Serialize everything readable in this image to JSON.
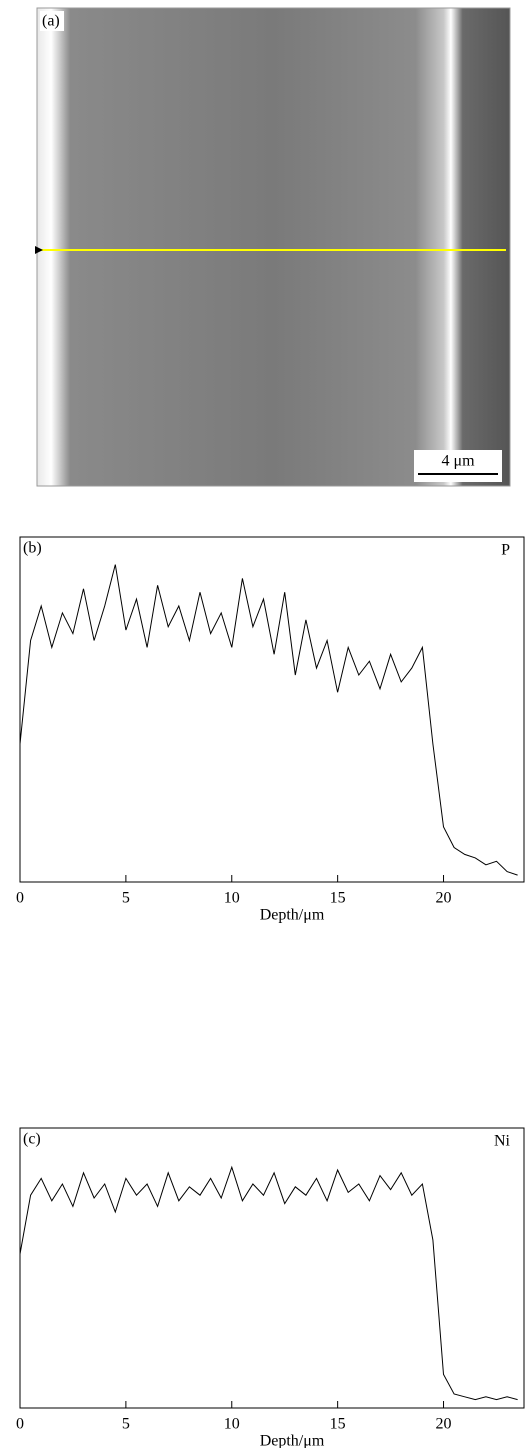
{
  "micrograph": {
    "label": "(a)",
    "scale_bar": "4 μm"
  },
  "chart_data": [
    {
      "type": "line",
      "panel": "(b)",
      "xlabel": "Depth/μm",
      "x": [
        0,
        0.5,
        1,
        1.5,
        2,
        2.5,
        3,
        3.5,
        4,
        4.5,
        5,
        5.5,
        6,
        6.5,
        7,
        7.5,
        8,
        8.5,
        9,
        9.5,
        10,
        10.5,
        11,
        11.5,
        12,
        12.5,
        13,
        13.5,
        14,
        14.5,
        15,
        15.5,
        16,
        16.5,
        17,
        17.5,
        18,
        18.5,
        19,
        19.5,
        20,
        20.5,
        21,
        21.5,
        22,
        22.5,
        23,
        23.5
      ],
      "series": [
        {
          "name": "P",
          "color": "#000000",
          "values": [
            40,
            70,
            80,
            68,
            78,
            72,
            85,
            70,
            80,
            92,
            73,
            82,
            68,
            86,
            74,
            80,
            70,
            84,
            72,
            78,
            68,
            88,
            74,
            82,
            66,
            84,
            60,
            76,
            62,
            70,
            55,
            68,
            60,
            64,
            56,
            66,
            58,
            62,
            68,
            40,
            16,
            10,
            8,
            7,
            5,
            6,
            3,
            2
          ]
        }
      ],
      "xlim": [
        0,
        23.8
      ],
      "ylim": [
        0,
        100
      ],
      "xticks": [
        0,
        5,
        10,
        15,
        20
      ]
    },
    {
      "type": "line",
      "panel": "(c)",
      "xlabel": "Depth/μm",
      "x": [
        0,
        0.5,
        1,
        1.5,
        2,
        2.5,
        3,
        3.5,
        4,
        4.5,
        5,
        5.5,
        6,
        6.5,
        7,
        7.5,
        8,
        8.5,
        9,
        9.5,
        10,
        10.5,
        11,
        11.5,
        12,
        12.5,
        13,
        13.5,
        14,
        14.5,
        15,
        15.5,
        16,
        16.5,
        17,
        17.5,
        18,
        18.5,
        19,
        19.5,
        20,
        20.5,
        21,
        21.5,
        22,
        22.5,
        23,
        23.5
      ],
      "series": [
        {
          "name": "Ni",
          "color": "#000000",
          "values": [
            55,
            76,
            82,
            74,
            80,
            72,
            84,
            75,
            80,
            70,
            82,
            76,
            80,
            72,
            84,
            74,
            79,
            76,
            82,
            75,
            86,
            74,
            80,
            76,
            84,
            73,
            79,
            76,
            82,
            74,
            85,
            77,
            80,
            74,
            83,
            78,
            84,
            76,
            80,
            60,
            12,
            5,
            4,
            3,
            4,
            3,
            4,
            3
          ]
        }
      ],
      "xlim": [
        0,
        23.8
      ],
      "ylim": [
        0,
        100
      ],
      "xticks": [
        0,
        5,
        10,
        15,
        20
      ]
    }
  ]
}
